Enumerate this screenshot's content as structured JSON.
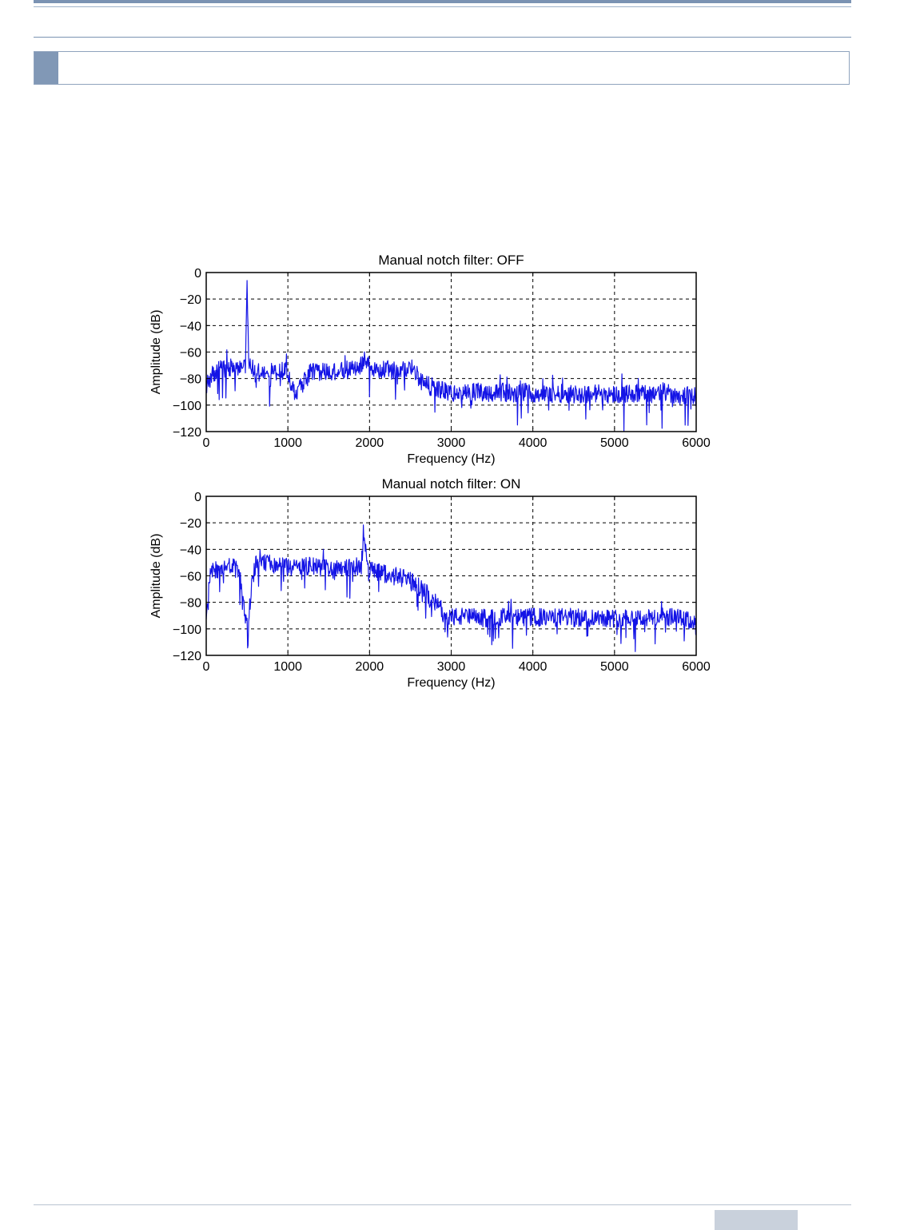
{
  "page": {
    "colors": {
      "rule": "#7b93b3",
      "marker": "#8198b6",
      "footer_tab": "#c9d1dc"
    }
  },
  "chart_data": [
    {
      "type": "line",
      "title": "Manual notch filter: OFF",
      "xlabel": "Frequency (Hz)",
      "ylabel": "Amplitude (dB)",
      "xlim": [
        0,
        6000
      ],
      "ylim": [
        -120,
        0
      ],
      "xticks": [
        "0",
        "1000",
        "2000",
        "3000",
        "4000",
        "5000",
        "6000"
      ],
      "yticks": [
        "0",
        "-20",
        "-40",
        "-60",
        "-80",
        "-100",
        "-120"
      ],
      "grid": true,
      "line_color": "#1414e6",
      "x": [
        0,
        100,
        200,
        300,
        400,
        480,
        500,
        520,
        600,
        700,
        800,
        900,
        1000,
        1050,
        1100,
        1150,
        1200,
        1300,
        1400,
        1500,
        1600,
        1700,
        1800,
        1900,
        1950,
        2000,
        2100,
        2200,
        2300,
        2400,
        2500,
        2550,
        2600,
        2700,
        2800,
        2900,
        3000,
        3100,
        3200,
        3300,
        3400,
        3500,
        3600,
        3700,
        3800,
        3900,
        4000,
        4200,
        4400,
        4600,
        4800,
        5000,
        5200,
        5400,
        5600,
        5800,
        5900,
        6000
      ],
      "y": [
        -85,
        -75,
        -73,
        -72,
        -72,
        -70,
        -6,
        -70,
        -74,
        -76,
        -75,
        -74,
        -74,
        -88,
        -90,
        -86,
        -82,
        -74,
        -75,
        -74,
        -75,
        -74,
        -72,
        -70,
        -63,
        -72,
        -73,
        -73,
        -74,
        -74,
        -72,
        -74,
        -80,
        -85,
        -87,
        -89,
        -91,
        -92,
        -91,
        -90,
        -90,
        -91,
        -90,
        -91,
        -92,
        -90,
        -91,
        -92,
        -91,
        -92,
        -91,
        -92,
        -91,
        -92,
        -90,
        -93,
        -92,
        -94
      ]
    },
    {
      "type": "line",
      "title": "Manual notch filter: ON",
      "xlabel": "Frequency (Hz)",
      "ylabel": "Amplitude (dB)",
      "xlim": [
        0,
        6000
      ],
      "ylim": [
        -120,
        0
      ],
      "xticks": [
        "0",
        "1000",
        "2000",
        "3000",
        "4000",
        "5000",
        "6000"
      ],
      "yticks": [
        "0",
        "-20",
        "-40",
        "-60",
        "-80",
        "-100",
        "-120"
      ],
      "grid": true,
      "line_color": "#1414e6",
      "x": [
        0,
        50,
        100,
        200,
        300,
        400,
        450,
        480,
        500,
        520,
        550,
        600,
        700,
        800,
        900,
        1000,
        1100,
        1200,
        1300,
        1400,
        1500,
        1600,
        1700,
        1800,
        1900,
        1930,
        1960,
        2000,
        2100,
        2200,
        2300,
        2400,
        2500,
        2600,
        2700,
        2800,
        2850,
        2900,
        2950,
        3000,
        3200,
        3400,
        3600,
        3800,
        4000,
        4200,
        4400,
        4600,
        4800,
        5000,
        5200,
        5400,
        5600,
        5800,
        5900,
        6000
      ],
      "y": [
        -95,
        -58,
        -55,
        -54,
        -52,
        -58,
        -75,
        -90,
        -94,
        -90,
        -72,
        -52,
        -50,
        -51,
        -52,
        -53,
        -54,
        -53,
        -53,
        -54,
        -54,
        -53,
        -53,
        -54,
        -52,
        -31,
        -45,
        -55,
        -57,
        -58,
        -60,
        -62,
        -64,
        -68,
        -74,
        -80,
        -84,
        -88,
        -90,
        -91,
        -91,
        -92,
        -91,
        -92,
        -91,
        -92,
        -91,
        -92,
        -91,
        -92,
        -91,
        -92,
        -91,
        -92,
        -94,
        -95
      ]
    }
  ]
}
